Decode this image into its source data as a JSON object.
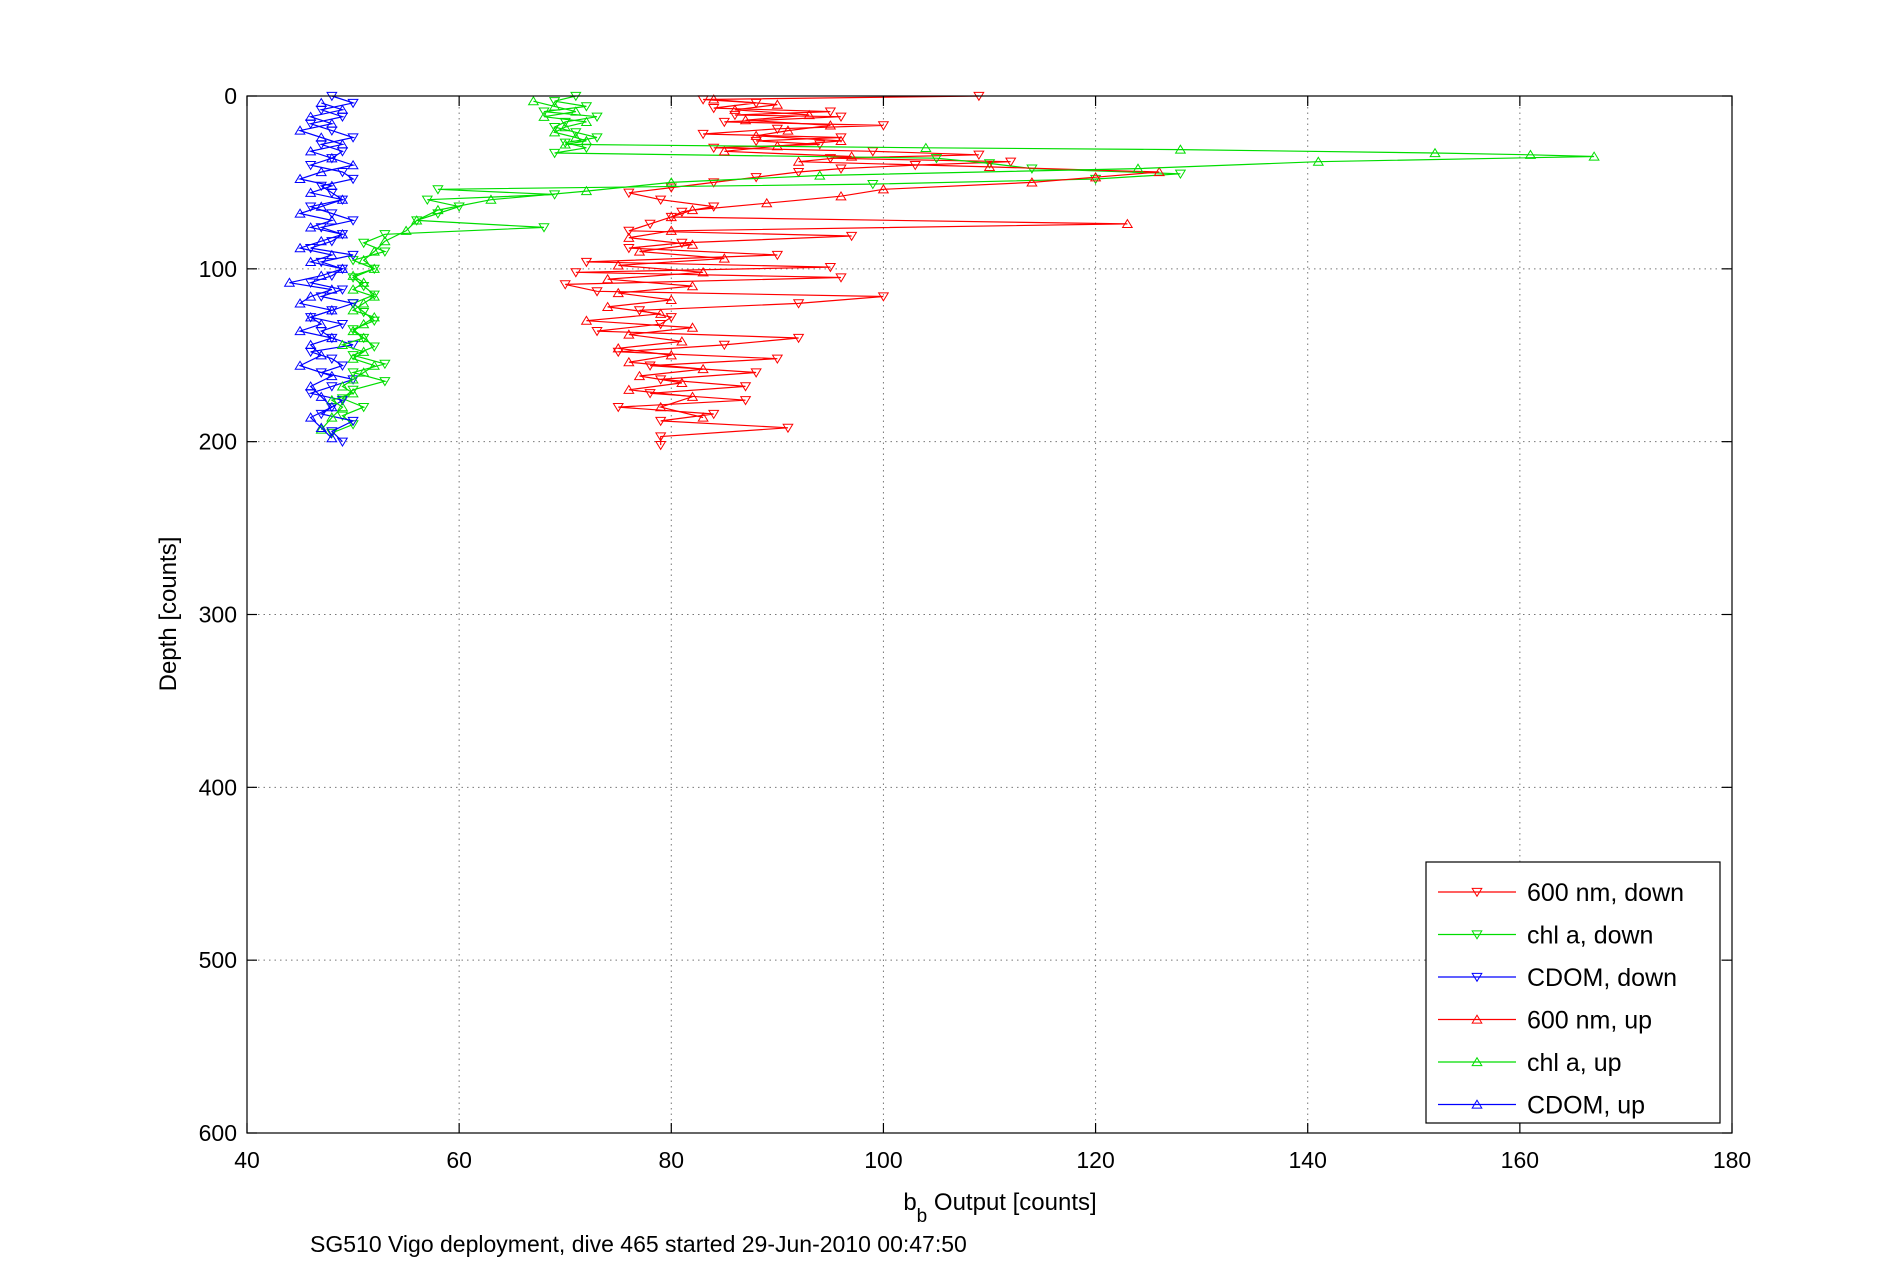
{
  "chart_data": {
    "type": "line",
    "xlabel_main": "b",
    "xlabel_sub": "b",
    "xlabel_rest": " Output [counts]",
    "ylabel": "Depth [counts]",
    "caption": "SG510 Vigo deployment, dive 465 started 29-Jun-2010 00:47:50",
    "xlim": [
      40,
      180
    ],
    "ylim": [
      0,
      600
    ],
    "y_reversed": true,
    "grid": true,
    "legend_position": "bottom-right",
    "xticks": [
      40,
      60,
      80,
      100,
      120,
      140,
      160,
      180
    ],
    "yticks": [
      0,
      100,
      200,
      300,
      400,
      500,
      600
    ],
    "series": [
      {
        "name": "600 nm, down",
        "color": "#ff0000",
        "marker": "triangle-down",
        "x": [
          109,
          83,
          88,
          84,
          95,
          86,
          96,
          85,
          100,
          90,
          83,
          96,
          88,
          94,
          84,
          99,
          109,
          95,
          112,
          103,
          96,
          92,
          88,
          84,
          80,
          76,
          79,
          84,
          81,
          80,
          78,
          76,
          97,
          81,
          76,
          90,
          72,
          95,
          71,
          96,
          70,
          73,
          100,
          92,
          77,
          80,
          79,
          73,
          92,
          85,
          75,
          90,
          78,
          88,
          79,
          87,
          78,
          87,
          75,
          84,
          79,
          91,
          79,
          79
        ],
        "y": [
          0,
          2,
          4,
          7,
          9,
          11,
          12,
          15,
          17,
          19,
          22,
          24,
          26,
          28,
          30,
          32,
          34,
          36,
          38,
          40,
          42,
          44,
          47,
          50,
          53,
          56,
          60,
          64,
          67,
          70,
          74,
          78,
          81,
          85,
          88,
          92,
          96,
          99,
          102,
          105,
          109,
          113,
          116,
          120,
          124,
          128,
          132,
          136,
          140,
          144,
          148,
          152,
          156,
          160,
          164,
          168,
          172,
          176,
          180,
          184,
          188,
          192,
          197,
          202
        ]
      },
      {
        "name": "chl a, down",
        "color": "#00dd00",
        "marker": "triangle-down",
        "x": [
          71,
          69,
          72,
          68,
          73,
          70,
          69,
          71,
          73,
          70,
          72,
          69,
          105,
          110,
          114,
          128,
          120,
          99,
          58,
          69,
          57,
          60,
          58,
          56,
          68,
          53,
          51,
          53,
          50,
          52,
          50,
          51,
          52,
          50,
          51,
          52,
          50,
          51,
          52,
          50,
          53,
          50,
          53,
          50,
          49,
          51,
          49,
          50,
          48
        ],
        "y": [
          0,
          3,
          6,
          9,
          12,
          15,
          18,
          21,
          24,
          27,
          30,
          33,
          36,
          39,
          42,
          45,
          48,
          51,
          54,
          57,
          60,
          64,
          68,
          72,
          76,
          80,
          85,
          90,
          95,
          100,
          105,
          110,
          115,
          120,
          125,
          130,
          135,
          140,
          145,
          150,
          155,
          160,
          165,
          170,
          175,
          180,
          185,
          190,
          195
        ]
      },
      {
        "name": "CDOM, down",
        "color": "#0000ff",
        "marker": "triangle-down",
        "x": [
          48,
          50,
          47,
          49,
          46,
          48,
          50,
          47,
          49,
          48,
          46,
          49,
          50,
          47,
          48,
          49,
          46,
          48,
          50,
          47,
          49,
          48,
          46,
          50,
          47,
          49,
          48,
          46,
          49,
          47,
          50,
          48,
          46,
          49,
          47,
          48,
          50,
          46,
          48,
          49,
          47,
          50,
          48,
          46,
          49,
          48,
          47,
          50,
          48,
          49
        ],
        "y": [
          0,
          4,
          8,
          12,
          16,
          20,
          24,
          28,
          32,
          36,
          40,
          44,
          48,
          52,
          56,
          60,
          64,
          68,
          72,
          76,
          80,
          84,
          88,
          92,
          96,
          100,
          104,
          108,
          112,
          116,
          120,
          124,
          128,
          132,
          136,
          140,
          144,
          148,
          152,
          156,
          160,
          164,
          168,
          172,
          176,
          180,
          184,
          188,
          194,
          200
        ]
      },
      {
        "name": "600 nm, up",
        "color": "#ff0000",
        "marker": "triangle-up",
        "x": [
          84,
          90,
          86,
          93,
          87,
          95,
          91,
          88,
          96,
          90,
          85,
          97,
          92,
          110,
          126,
          120,
          114,
          100,
          96,
          89,
          82,
          80,
          123,
          80,
          76,
          82,
          77,
          85,
          75,
          83,
          74,
          82,
          75,
          80,
          74,
          79,
          72,
          82,
          76,
          81,
          75,
          80,
          76,
          83,
          77,
          81,
          76,
          82,
          79,
          83
        ],
        "y": [
          2,
          5,
          8,
          11,
          14,
          17,
          20,
          23,
          26,
          29,
          32,
          35,
          38,
          41,
          44,
          47,
          50,
          54,
          58,
          62,
          66,
          70,
          74,
          78,
          82,
          86,
          90,
          94,
          98,
          102,
          106,
          110,
          114,
          118,
          122,
          126,
          130,
          134,
          138,
          142,
          146,
          150,
          154,
          158,
          162,
          166,
          170,
          174,
          180,
          186
        ]
      },
      {
        "name": "chl a, up",
        "color": "#00dd00",
        "marker": "triangle-up",
        "x": [
          67,
          69,
          71,
          68,
          72,
          70,
          69,
          71,
          72,
          70,
          104,
          128,
          152,
          161,
          167,
          141,
          124,
          94,
          80,
          72,
          63,
          58,
          56,
          55,
          53,
          52,
          51,
          52,
          50,
          51,
          50,
          52,
          51,
          50,
          52,
          51,
          50,
          51,
          49,
          51,
          50,
          52,
          51,
          50,
          49,
          50,
          48,
          49,
          48,
          47
        ],
        "y": [
          3,
          6,
          9,
          12,
          15,
          18,
          21,
          24,
          26,
          28,
          30,
          31,
          33,
          34,
          35,
          38,
          42,
          46,
          50,
          55,
          60,
          66,
          72,
          78,
          84,
          90,
          95,
          100,
          104,
          108,
          112,
          116,
          120,
          124,
          128,
          132,
          136,
          140,
          144,
          148,
          152,
          156,
          160,
          164,
          168,
          172,
          176,
          180,
          186,
          193
        ]
      },
      {
        "name": "CDOM, up",
        "color": "#0000ff",
        "marker": "triangle-up",
        "x": [
          47,
          49,
          46,
          48,
          45,
          47,
          49,
          46,
          48,
          50,
          47,
          45,
          48,
          46,
          49,
          47,
          45,
          48,
          46,
          49,
          47,
          45,
          48,
          46,
          49,
          47,
          44,
          48,
          46,
          45,
          48,
          46,
          47,
          45,
          48,
          46,
          47,
          45,
          48,
          46,
          47,
          48,
          46,
          47,
          48
        ],
        "y": [
          4,
          8,
          12,
          16,
          20,
          24,
          28,
          32,
          36,
          40,
          44,
          48,
          52,
          56,
          60,
          64,
          68,
          72,
          76,
          80,
          84,
          88,
          92,
          96,
          100,
          104,
          108,
          112,
          116,
          120,
          124,
          128,
          132,
          136,
          140,
          144,
          150,
          156,
          162,
          168,
          174,
          180,
          186,
          192,
          198
        ]
      }
    ]
  }
}
